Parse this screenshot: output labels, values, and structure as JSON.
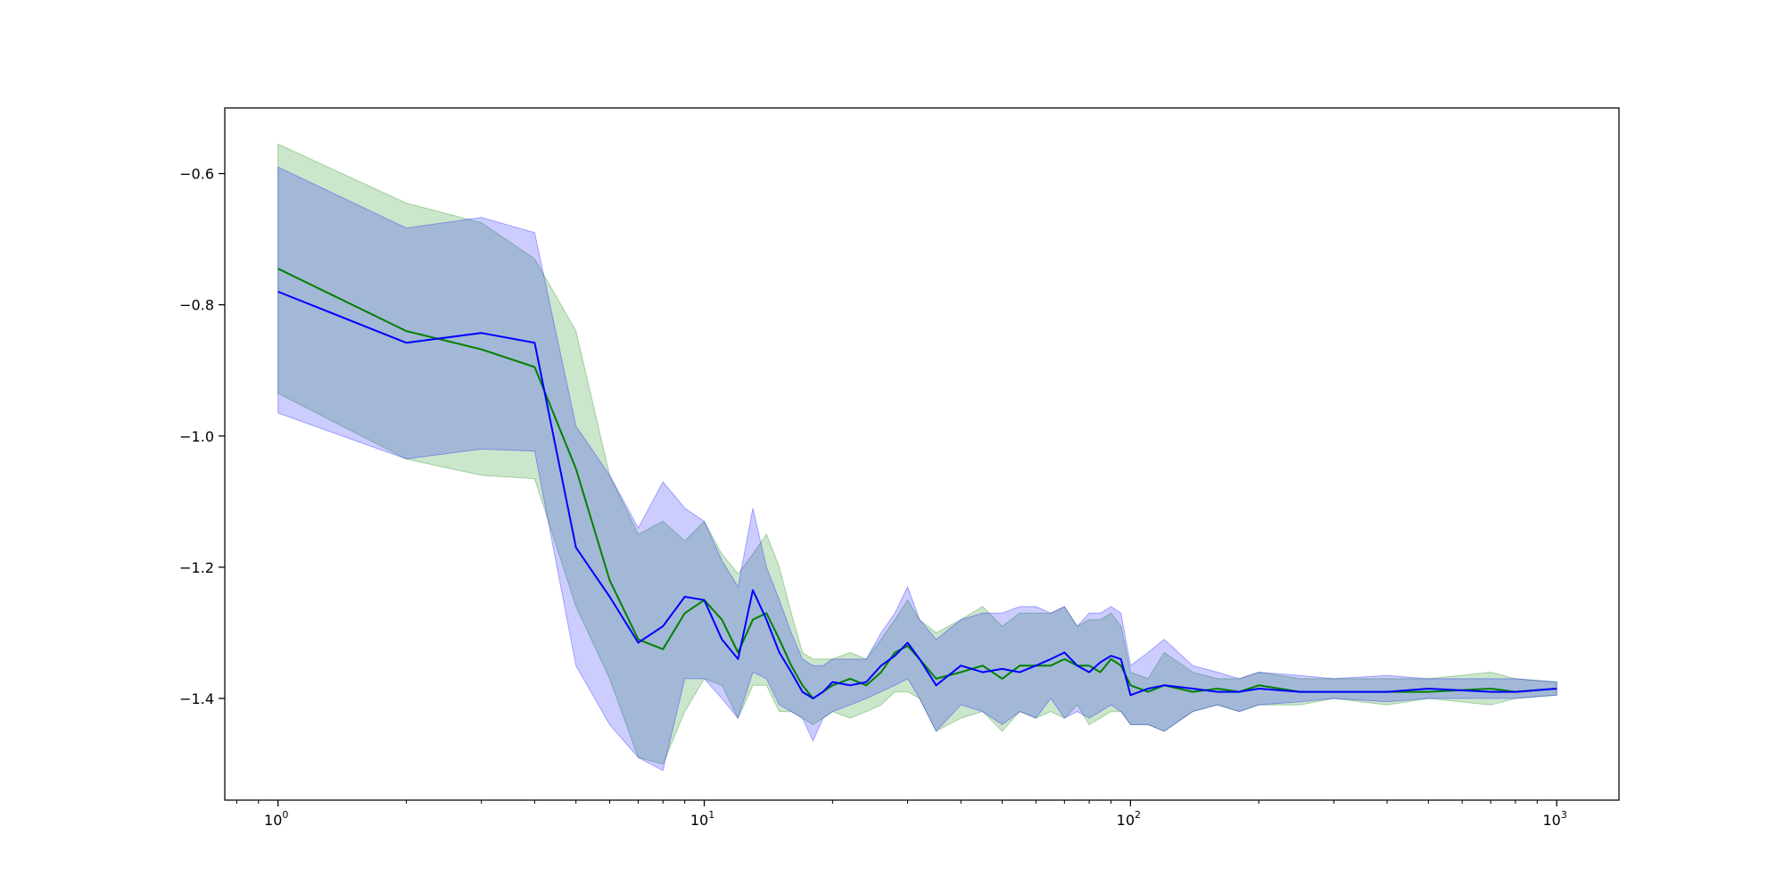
{
  "chart_data": {
    "type": "line",
    "xscale": "log",
    "xlim": [
      0.75,
      1400
    ],
    "ylim": [
      -1.555,
      -0.5
    ],
    "grid": false,
    "legend": "none",
    "x_ticks": [
      {
        "value": 1,
        "base": "10",
        "exp": "0"
      },
      {
        "value": 10,
        "base": "10",
        "exp": "1"
      },
      {
        "value": 100,
        "base": "10",
        "exp": "2"
      },
      {
        "value": 1000,
        "base": "10",
        "exp": "3"
      }
    ],
    "y_ticks": [
      {
        "value": -0.6,
        "label": "−0.6"
      },
      {
        "value": -0.8,
        "label": "−0.8"
      },
      {
        "value": -1.0,
        "label": "−1.0"
      },
      {
        "value": -1.2,
        "label": "−1.2"
      },
      {
        "value": -1.4,
        "label": "−1.4"
      }
    ],
    "series": [
      {
        "color": "#008000",
        "fill": "#008000",
        "fill_alpha": 0.2,
        "x": [
          1,
          2,
          3,
          4,
          5,
          6,
          7,
          8,
          9,
          10,
          11,
          12,
          13,
          14,
          15,
          16,
          17,
          18,
          19,
          20,
          22,
          24,
          26,
          28,
          30,
          32,
          35,
          40,
          45,
          50,
          55,
          60,
          65,
          70,
          75,
          80,
          85,
          90,
          95,
          100,
          110,
          120,
          140,
          160,
          180,
          200,
          250,
          300,
          400,
          500,
          700,
          800,
          1000
        ],
        "y": [
          -0.745,
          -0.84,
          -0.868,
          -0.895,
          -1.05,
          -1.22,
          -1.31,
          -1.325,
          -1.27,
          -1.25,
          -1.28,
          -1.33,
          -1.28,
          -1.27,
          -1.31,
          -1.35,
          -1.38,
          -1.4,
          -1.39,
          -1.38,
          -1.37,
          -1.38,
          -1.36,
          -1.33,
          -1.32,
          -1.34,
          -1.37,
          -1.36,
          -1.35,
          -1.37,
          -1.35,
          -1.35,
          -1.35,
          -1.34,
          -1.35,
          -1.35,
          -1.36,
          -1.34,
          -1.35,
          -1.38,
          -1.39,
          -1.38,
          -1.39,
          -1.385,
          -1.39,
          -1.38,
          -1.39,
          -1.39,
          -1.39,
          -1.39,
          -1.385,
          -1.39,
          -1.385
        ],
        "lower": [
          -0.935,
          -1.035,
          -1.06,
          -1.065,
          -1.26,
          -1.37,
          -1.49,
          -1.5,
          -1.42,
          -1.37,
          -1.38,
          -1.43,
          -1.38,
          -1.38,
          -1.42,
          -1.42,
          -1.43,
          -1.44,
          -1.43,
          -1.42,
          -1.43,
          -1.42,
          -1.41,
          -1.39,
          -1.39,
          -1.4,
          -1.45,
          -1.43,
          -1.42,
          -1.45,
          -1.42,
          -1.43,
          -1.42,
          -1.43,
          -1.41,
          -1.44,
          -1.43,
          -1.42,
          -1.42,
          -1.44,
          -1.44,
          -1.45,
          -1.42,
          -1.41,
          -1.42,
          -1.41,
          -1.41,
          -1.4,
          -1.41,
          -1.4,
          -1.41,
          -1.4,
          -1.395
        ],
        "upper": [
          -0.555,
          -0.645,
          -0.675,
          -0.73,
          -0.84,
          -1.06,
          -1.15,
          -1.13,
          -1.16,
          -1.13,
          -1.18,
          -1.21,
          -1.18,
          -1.15,
          -1.2,
          -1.27,
          -1.33,
          -1.34,
          -1.34,
          -1.34,
          -1.33,
          -1.34,
          -1.31,
          -1.28,
          -1.25,
          -1.28,
          -1.3,
          -1.28,
          -1.26,
          -1.29,
          -1.27,
          -1.27,
          -1.27,
          -1.26,
          -1.29,
          -1.28,
          -1.28,
          -1.27,
          -1.29,
          -1.36,
          -1.37,
          -1.33,
          -1.36,
          -1.37,
          -1.37,
          -1.36,
          -1.37,
          -1.37,
          -1.37,
          -1.37,
          -1.36,
          -1.37,
          -1.375
        ]
      },
      {
        "color": "#0000ff",
        "fill": "#0000ff",
        "fill_alpha": 0.2,
        "x": [
          1,
          2,
          3,
          4,
          5,
          6,
          7,
          8,
          9,
          10,
          11,
          12,
          13,
          14,
          15,
          16,
          17,
          18,
          19,
          20,
          22,
          24,
          26,
          28,
          30,
          32,
          35,
          40,
          45,
          50,
          55,
          60,
          65,
          70,
          75,
          80,
          85,
          90,
          95,
          100,
          110,
          120,
          140,
          160,
          180,
          200,
          250,
          300,
          400,
          500,
          700,
          800,
          1000
        ],
        "y": [
          -0.78,
          -0.858,
          -0.843,
          -0.858,
          -1.17,
          -1.245,
          -1.315,
          -1.29,
          -1.245,
          -1.25,
          -1.31,
          -1.34,
          -1.235,
          -1.28,
          -1.33,
          -1.36,
          -1.39,
          -1.4,
          -1.39,
          -1.375,
          -1.38,
          -1.375,
          -1.35,
          -1.335,
          -1.315,
          -1.34,
          -1.38,
          -1.35,
          -1.36,
          -1.355,
          -1.36,
          -1.35,
          -1.34,
          -1.33,
          -1.35,
          -1.36,
          -1.345,
          -1.335,
          -1.34,
          -1.395,
          -1.385,
          -1.38,
          -1.385,
          -1.39,
          -1.39,
          -1.385,
          -1.39,
          -1.39,
          -1.39,
          -1.385,
          -1.39,
          -1.39,
          -1.385
        ],
        "lower": [
          -0.965,
          -1.035,
          -1.02,
          -1.023,
          -1.35,
          -1.44,
          -1.49,
          -1.51,
          -1.37,
          -1.37,
          -1.4,
          -1.43,
          -1.36,
          -1.37,
          -1.41,
          -1.42,
          -1.43,
          -1.465,
          -1.43,
          -1.42,
          -1.41,
          -1.4,
          -1.39,
          -1.38,
          -1.37,
          -1.4,
          -1.45,
          -1.41,
          -1.42,
          -1.44,
          -1.42,
          -1.43,
          -1.4,
          -1.43,
          -1.42,
          -1.43,
          -1.42,
          -1.41,
          -1.42,
          -1.44,
          -1.44,
          -1.45,
          -1.42,
          -1.41,
          -1.42,
          -1.41,
          -1.405,
          -1.4,
          -1.405,
          -1.4,
          -1.4,
          -1.4,
          -1.395
        ],
        "upper": [
          -0.59,
          -0.683,
          -0.667,
          -0.69,
          -0.985,
          -1.06,
          -1.14,
          -1.07,
          -1.11,
          -1.13,
          -1.19,
          -1.23,
          -1.11,
          -1.2,
          -1.25,
          -1.3,
          -1.34,
          -1.35,
          -1.35,
          -1.34,
          -1.34,
          -1.34,
          -1.3,
          -1.27,
          -1.23,
          -1.28,
          -1.31,
          -1.28,
          -1.27,
          -1.27,
          -1.26,
          -1.26,
          -1.27,
          -1.26,
          -1.29,
          -1.27,
          -1.27,
          -1.26,
          -1.27,
          -1.35,
          -1.33,
          -1.31,
          -1.35,
          -1.36,
          -1.37,
          -1.36,
          -1.365,
          -1.37,
          -1.365,
          -1.37,
          -1.37,
          -1.37,
          -1.375
        ]
      }
    ]
  }
}
